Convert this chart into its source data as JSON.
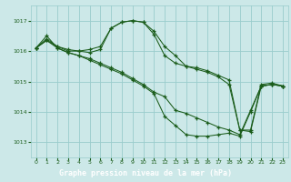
{
  "background_color": "#cce8e8",
  "plot_bg_color": "#cce8e8",
  "grid_color": "#99cccc",
  "line_color": "#1a5c1a",
  "title_bg_color": "#1a5c1a",
  "title_text_color": "#ffffff",
  "title": "Graphe pression niveau de la mer (hPa)",
  "ylim": [
    1012.5,
    1017.5
  ],
  "xlim": [
    -0.5,
    23.5
  ],
  "yticks": [
    1013,
    1014,
    1015,
    1016,
    1017
  ],
  "xticks": [
    0,
    1,
    2,
    3,
    4,
    5,
    6,
    7,
    8,
    9,
    10,
    11,
    12,
    13,
    14,
    15,
    16,
    17,
    18,
    19,
    20,
    21,
    22,
    23
  ],
  "tick_color": "#1a5c1a",
  "series": [
    {
      "x": [
        0,
        1,
        2,
        3,
        4,
        5,
        6,
        7,
        8,
        9,
        10,
        11,
        12,
        13,
        14,
        15,
        16,
        17,
        18,
        19,
        20,
        21,
        22,
        23
      ],
      "y": [
        1016.1,
        1016.5,
        1016.1,
        1015.95,
        1015.85,
        1015.75,
        1015.6,
        1015.45,
        1015.3,
        1015.1,
        1014.9,
        1014.65,
        1014.5,
        1014.05,
        1013.95,
        1013.8,
        1013.65,
        1013.5,
        1013.4,
        1013.25,
        1014.05,
        1014.85,
        1014.9,
        1014.85
      ]
    },
    {
      "x": [
        0,
        1,
        2,
        3,
        4,
        5,
        6,
        7,
        8,
        9,
        10,
        11,
        12,
        13,
        14,
        15,
        16,
        17,
        18,
        19,
        20,
        21,
        22,
        23
      ],
      "y": [
        1016.1,
        1016.35,
        1016.1,
        1015.95,
        1015.85,
        1015.7,
        1015.55,
        1015.4,
        1015.25,
        1015.05,
        1014.85,
        1014.6,
        1013.85,
        1013.55,
        1013.25,
        1013.2,
        1013.2,
        1013.25,
        1013.3,
        1013.2,
        1014.0,
        1014.85,
        1014.9,
        1014.85
      ]
    },
    {
      "x": [
        0,
        1,
        2,
        3,
        4,
        5,
        6,
        7,
        8,
        9,
        10,
        11,
        12,
        13,
        14,
        15,
        16,
        17,
        18,
        19,
        20,
        21,
        22,
        23
      ],
      "y": [
        1016.1,
        1016.4,
        1016.15,
        1016.05,
        1016.0,
        1015.95,
        1016.05,
        1016.75,
        1016.95,
        1017.0,
        1016.95,
        1016.55,
        1015.85,
        1015.6,
        1015.5,
        1015.4,
        1015.3,
        1015.15,
        1014.9,
        1013.4,
        1013.35,
        1014.85,
        1014.9,
        1014.85
      ]
    },
    {
      "x": [
        0,
        1,
        2,
        3,
        4,
        5,
        6,
        7,
        8,
        9,
        10,
        11,
        12,
        13,
        14,
        15,
        16,
        17,
        18,
        19,
        20,
        21,
        22,
        23
      ],
      "y": [
        1016.1,
        1016.35,
        1016.15,
        1016.0,
        1016.0,
        1016.05,
        1016.15,
        1016.75,
        1016.95,
        1017.0,
        1016.95,
        1016.65,
        1016.15,
        1015.85,
        1015.5,
        1015.45,
        1015.35,
        1015.2,
        1015.05,
        1013.4,
        1013.4,
        1014.9,
        1014.95,
        1014.85
      ]
    }
  ]
}
